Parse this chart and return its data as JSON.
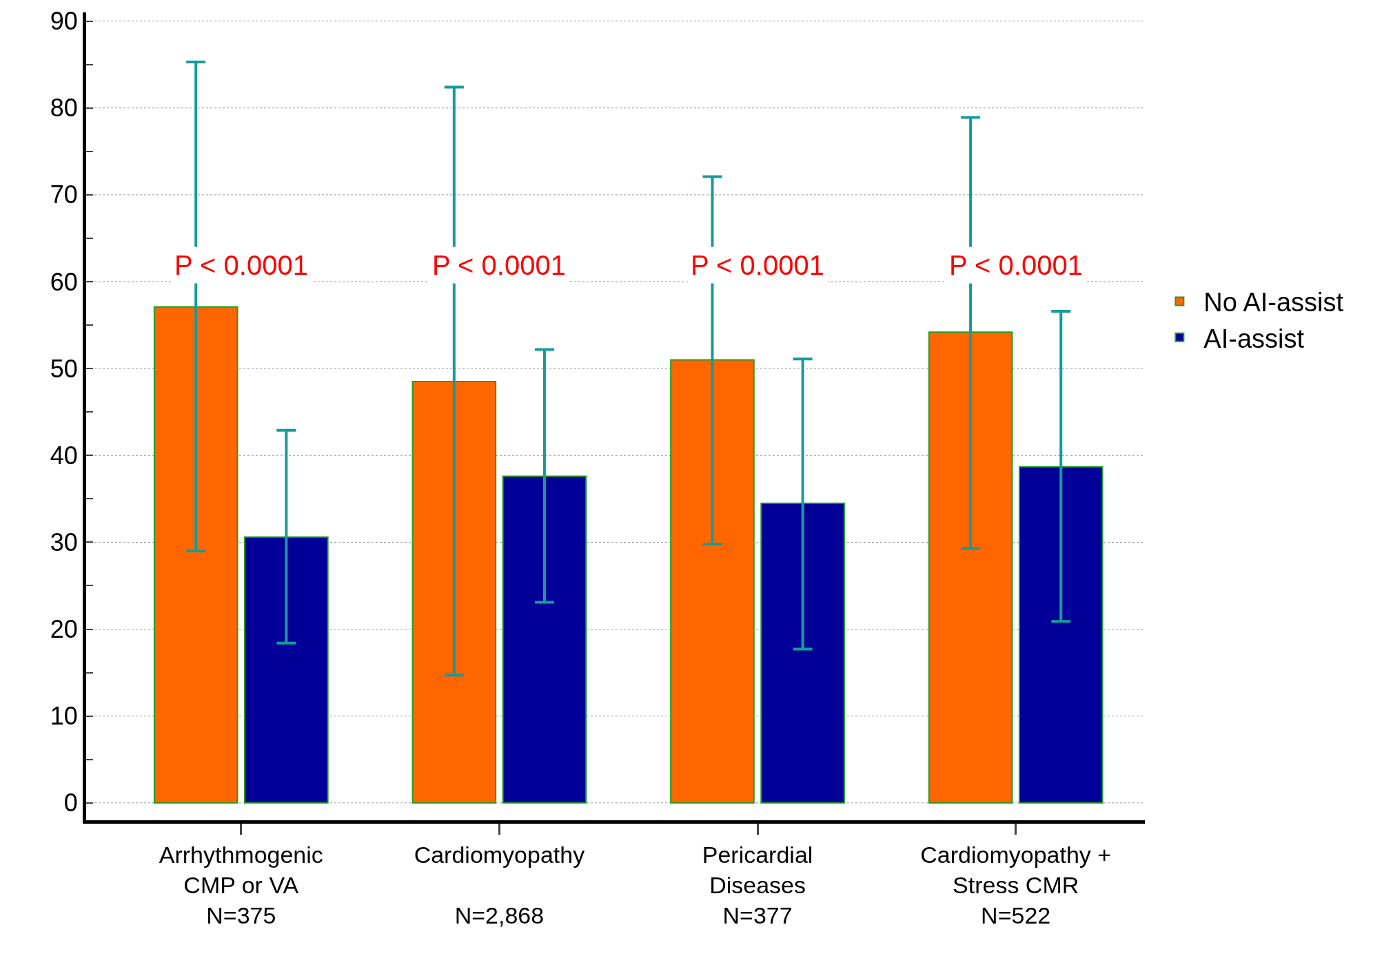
{
  "chart_data": {
    "type": "bar",
    "categories": [
      "Arrhythmogenic\nCMP or VA\nN=375",
      "Cardiomyopathy\n\nN=2,868",
      "Pericardial\nDiseases\nN=377",
      "Cardiomyopathy +\nStress CMR\nN=522"
    ],
    "series": [
      {
        "name": "No AI-assist",
        "color": "#ff6600",
        "values": [
          57.1,
          48.5,
          51.0,
          54.2
        ],
        "errors": [
          [
            29.0,
            85.3
          ],
          [
            14.7,
            82.4
          ],
          [
            29.8,
            72.1
          ],
          [
            29.3,
            78.9
          ]
        ]
      },
      {
        "name": "AI-assist",
        "color": "#000099",
        "values": [
          30.6,
          37.6,
          34.5,
          38.7
        ],
        "errors": [
          [
            18.4,
            42.9
          ],
          [
            23.1,
            52.2
          ],
          [
            17.7,
            51.1
          ],
          [
            20.9,
            56.6
          ]
        ]
      }
    ],
    "annotations": [
      "P < 0.0001",
      "P < 0.0001",
      "P < 0.0001",
      "P < 0.0001"
    ],
    "ylim": [
      -2,
      91
    ],
    "yticks": [
      0,
      {
        "value": 5,
        "label": null
      },
      10,
      {
        "value": 15,
        "label": null
      },
      20,
      {
        "value": 25,
        "label": null
      },
      30,
      {
        "value": 35,
        "label": null
      },
      40,
      {
        "value": 45,
        "label": null
      },
      50,
      {
        "value": 55,
        "label": null
      },
      60,
      {
        "value": 65,
        "label": null
      },
      70,
      {
        "value": 75,
        "label": null
      },
      80,
      {
        "value": 85,
        "label": null
      },
      90
    ],
    "grid": "y",
    "legend": "right"
  }
}
